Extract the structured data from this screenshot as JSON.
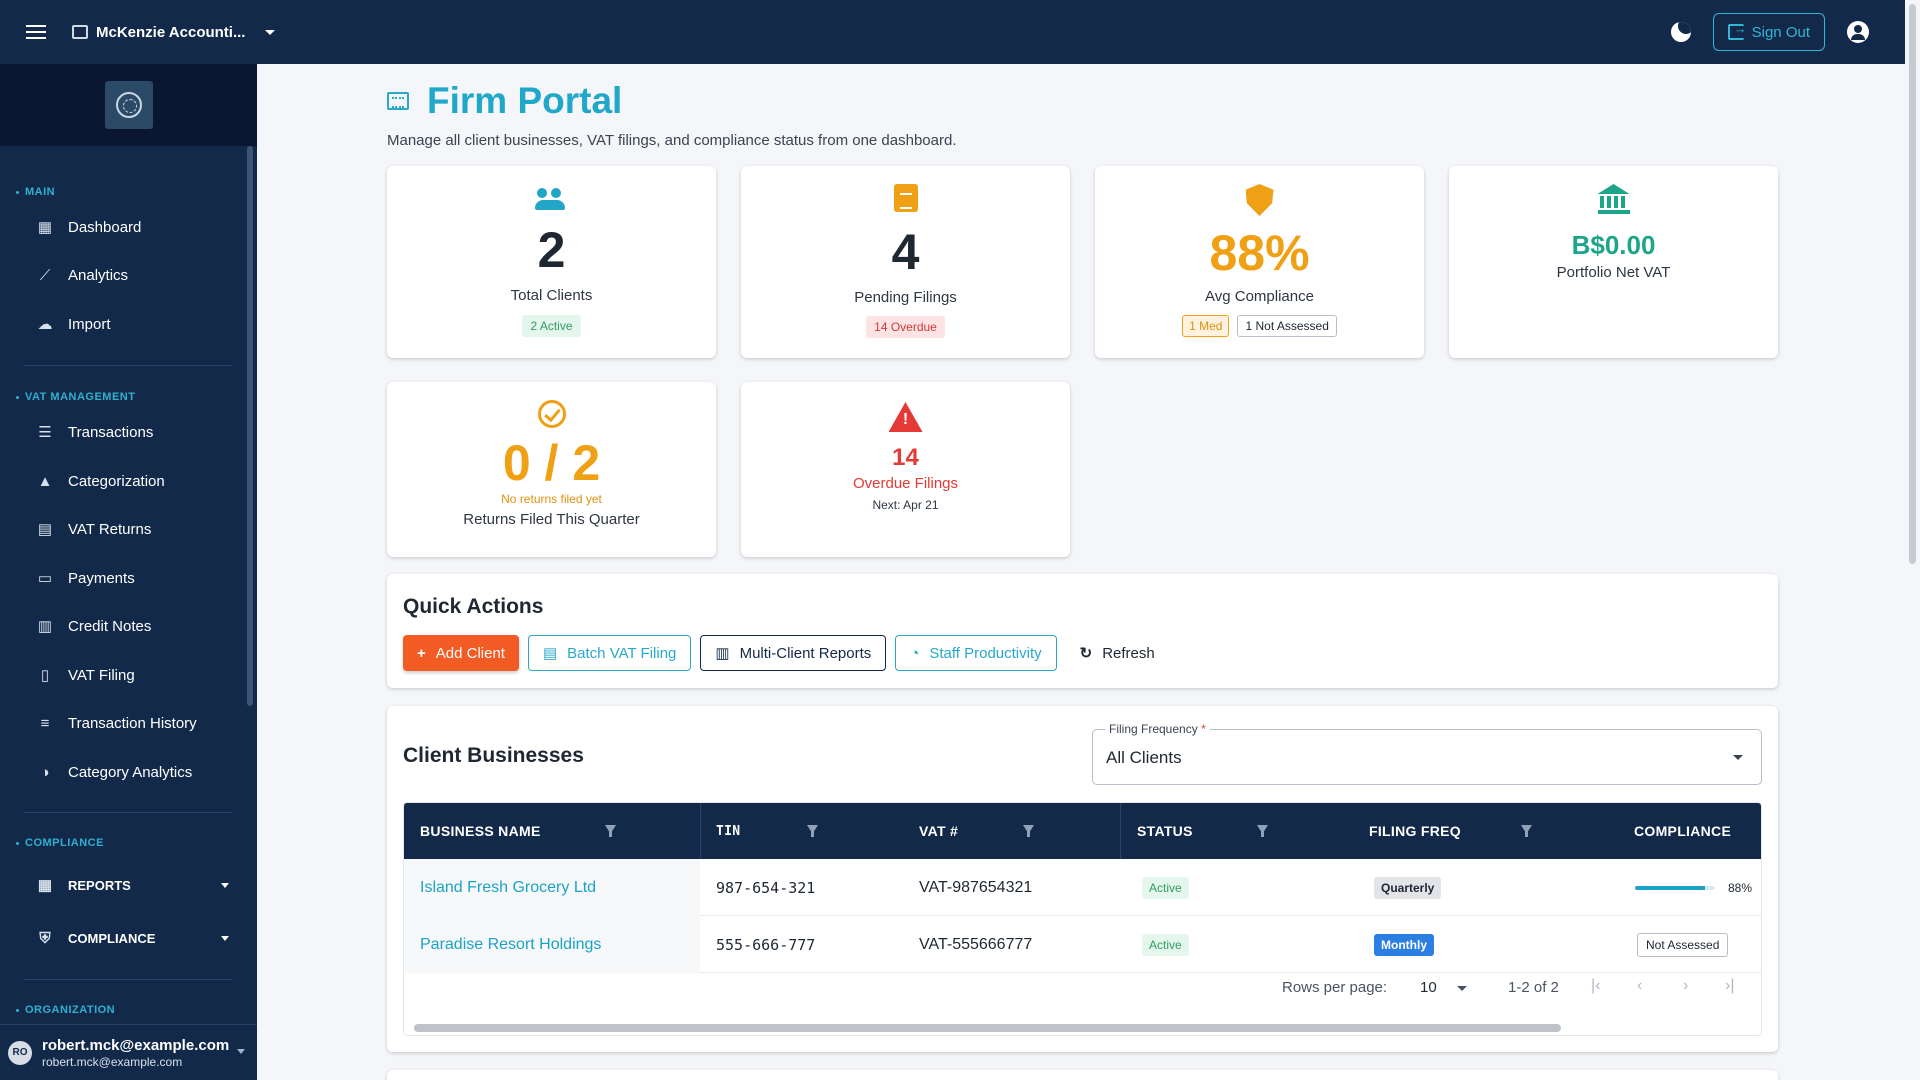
{
  "topbar": {
    "org_name": "McKenzie Accounti...",
    "sign_out_label": "Sign Out"
  },
  "sidebar": {
    "sections": {
      "main": "MAIN",
      "vat_management": "VAT MANAGEMENT",
      "compliance": "COMPLIANCE",
      "organization": "ORGANIZATION"
    },
    "main_items": [
      {
        "label": "Dashboard",
        "icon": "dashboard-icon"
      },
      {
        "label": "Analytics",
        "icon": "analytics-icon"
      },
      {
        "label": "Import",
        "icon": "cloud-upload-icon"
      }
    ],
    "vat_items": [
      {
        "label": "Transactions",
        "icon": "list-icon"
      },
      {
        "label": "Categorization",
        "icon": "category-icon"
      },
      {
        "label": "VAT Returns",
        "icon": "clipboard-icon"
      },
      {
        "label": "Payments",
        "icon": "credit-card-icon"
      },
      {
        "label": "Credit Notes",
        "icon": "receipt-icon"
      },
      {
        "label": "VAT Filing",
        "icon": "file-icon"
      },
      {
        "label": "Transaction History",
        "icon": "search-list-icon"
      },
      {
        "label": "Category Analytics",
        "icon": "pie-chart-icon"
      }
    ],
    "compliance_groups": [
      {
        "label": "REPORTS",
        "icon": "report-icon"
      },
      {
        "label": "COMPLIANCE",
        "icon": "shield-icon"
      }
    ],
    "user": {
      "initials": "RO",
      "name": "robert.mck@example.com",
      "email": "robert.mck@example.com"
    }
  },
  "page": {
    "title": "Firm Portal",
    "subtitle": "Manage all client businesses, VAT filings, and compliance status from one dashboard."
  },
  "stats": {
    "total_clients": {
      "value": "2",
      "label": "Total Clients",
      "chip": "2 Active"
    },
    "pending_filings": {
      "value": "4",
      "label": "Pending Filings",
      "chip": "14 Overdue"
    },
    "avg_compliance": {
      "value": "88%",
      "label": "Avg Compliance",
      "chip_med": "1 Med",
      "chip_na": "1 Not Assessed"
    },
    "net_vat": {
      "value": "B$0.00",
      "label": "Portfolio Net VAT"
    },
    "returns_filed": {
      "value": "0 / 2",
      "note": "No returns filed yet",
      "label": "Returns Filed This Quarter"
    },
    "overdue": {
      "value": "14",
      "label": "Overdue Filings",
      "next": "Next: Apr 21"
    }
  },
  "colors": {
    "primary_navy": "#13294a",
    "accent_teal": "#20a8c9",
    "warning_orange": "#f0a014",
    "danger_red": "#e53935",
    "success_green": "#1da58a",
    "action_orange": "#f25b23"
  },
  "quick_actions": {
    "title": "Quick Actions",
    "add_client": "Add Client",
    "batch_vat": "Batch VAT Filing",
    "multi_reports": "Multi-Client Reports",
    "staff_productivity": "Staff Productivity",
    "refresh": "Refresh"
  },
  "clients": {
    "title": "Client Businesses",
    "filter": {
      "label": "Filing Frequency",
      "required_mark": "*",
      "value": "All Clients"
    },
    "columns": [
      "BUSINESS NAME",
      "TIN",
      "VAT #",
      "STATUS",
      "FILING FREQ",
      "COMPLIANCE"
    ],
    "rows": [
      {
        "name": "Island Fresh Grocery Ltd",
        "tin": "987-654-321",
        "vat": "VAT-987654321",
        "status": "Active",
        "freq": "Quarterly",
        "compliance": "88%",
        "compliance_fraction": 0.88
      },
      {
        "name": "Paradise Resort Holdings",
        "tin": "555-666-777",
        "vat": "VAT-555666777",
        "status": "Active",
        "freq": "Monthly",
        "compliance": "Not Assessed"
      }
    ],
    "pagination": {
      "rows_per_page_label": "Rows per page:",
      "rows_per_page": "10",
      "range": "1-2 of 2"
    }
  }
}
